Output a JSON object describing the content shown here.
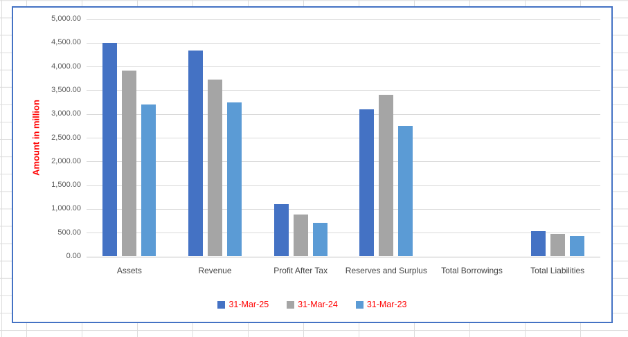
{
  "chart_data": {
    "type": "bar",
    "title": "",
    "xlabel": "",
    "ylabel": "Amount in million",
    "ylabel_color": "#ff0000",
    "legend_text_color": "#ff0000",
    "tick_label_color": "#595959",
    "category_label_color": "#444444",
    "chart_border_color": "#4472c4",
    "gridlines": true,
    "legend_position": "bottom",
    "ylim": [
      0,
      5000
    ],
    "ytick_step": 500,
    "ytick_labels": [
      "0.00",
      "500.00",
      "1,000.00",
      "1,500.00",
      "2,000.00",
      "2,500.00",
      "3,000.00",
      "3,500.00",
      "4,000.00",
      "4,500.00",
      "5,000.00"
    ],
    "categories": [
      "Assets",
      "Revenue",
      "Profit After Tax",
      "Reserves and Surplus",
      "Total Borrowings",
      "Total Liabilities"
    ],
    "series": [
      {
        "name": "31-Mar-25",
        "color": "#4472c4",
        "values": [
          4500,
          4330,
          1100,
          3100,
          0,
          530
        ]
      },
      {
        "name": "31-Mar-24",
        "color": "#a5a5a5",
        "values": [
          3920,
          3730,
          880,
          3400,
          0,
          480
        ]
      },
      {
        "name": "31-Mar-23",
        "color": "#5b9bd5",
        "values": [
          3200,
          3250,
          700,
          2750,
          0,
          430
        ]
      }
    ]
  }
}
